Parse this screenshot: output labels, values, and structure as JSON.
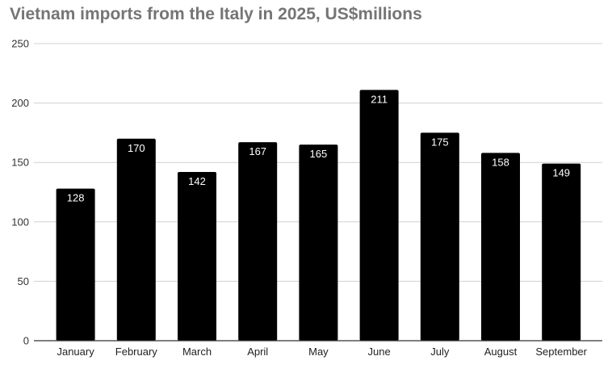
{
  "chart_data": {
    "type": "bar",
    "title": "Vietnam imports from the Italy in 2025, US$millions",
    "xlabel": "",
    "ylabel": "",
    "categories": [
      "January",
      "February",
      "March",
      "April",
      "May",
      "June",
      "July",
      "August",
      "September"
    ],
    "values": [
      128,
      170,
      142,
      167,
      165,
      211,
      175,
      158,
      149
    ],
    "ylim": [
      0,
      250
    ],
    "yticks": [
      0,
      50,
      100,
      150,
      200,
      250
    ],
    "grid": true,
    "legend": "none",
    "bar_color": "#000000",
    "label_color": "#ffffff",
    "title_color": "#757575"
  }
}
